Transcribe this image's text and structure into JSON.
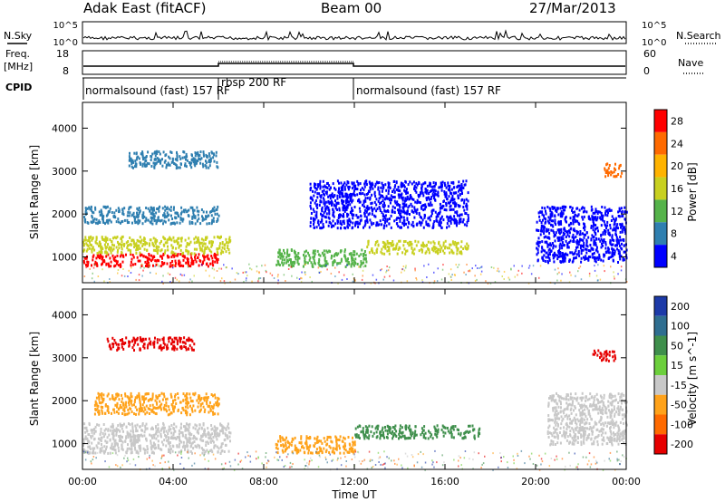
{
  "header": {
    "station": "Adak East (fitACF)",
    "beam": "Beam 00",
    "date": "27/Mar/2013"
  },
  "left_labels": {
    "nsky": "N.Sky",
    "freq": "Freq.",
    "freq_unit": "[MHz]",
    "cpid": "CPID"
  },
  "right_labels": {
    "nsearch": "N.Search",
    "nave": "Nave"
  },
  "ticks": {
    "nsky_left": [
      "10^5",
      "10^0"
    ],
    "nsearch_right": [
      "10^5",
      "10^0"
    ],
    "freq_left": [
      "18",
      "8"
    ],
    "nave_right": [
      "60",
      "0"
    ]
  },
  "cpid_programs": [
    {
      "label": "normalsound (fast) 157 RF",
      "start_h": 0,
      "end_h": 6
    },
    {
      "label": "rbsp 200 RF",
      "start_h": 6,
      "end_h": 12
    },
    {
      "label": "normalsound (fast) 157 RF",
      "start_h": 12,
      "end_h": 24
    }
  ],
  "colors": {
    "frame": "#000000",
    "background": "#ffffff"
  },
  "chart_data": [
    {
      "type": "heatmap",
      "quantity": "Power",
      "xlabel": "Time UT",
      "ylabel": "Slant Range [km]",
      "x_ticks": [
        "00:00",
        "04:00",
        "08:00",
        "12:00",
        "16:00",
        "20:00",
        "00:00"
      ],
      "x_range_hours": [
        0,
        24
      ],
      "y_ticks": [
        1000,
        2000,
        3000,
        4000
      ],
      "ylim": [
        400,
        4600
      ],
      "colorbar_label": "Power [dB]",
      "colorbar_ticks": [
        28,
        24,
        20,
        16,
        12,
        8,
        4
      ],
      "colorbar_colors": [
        "#ff0000",
        "#ff6a00",
        "#ffb300",
        "#c8d020",
        "#55b34a",
        "#2f7fb0",
        "#0000ff"
      ],
      "echo_regions": [
        {
          "t0": 0.0,
          "t1": 6.0,
          "r0": 800,
          "r1": 1100,
          "level": 28
        },
        {
          "t0": 0.0,
          "t1": 6.5,
          "r0": 1100,
          "r1": 1500,
          "level": 16
        },
        {
          "t0": 0.0,
          "t1": 6.0,
          "r0": 1800,
          "r1": 2200,
          "level": 8
        },
        {
          "t0": 2.0,
          "t1": 6.0,
          "r0": 3100,
          "r1": 3500,
          "level": 8
        },
        {
          "t0": 8.5,
          "t1": 12.5,
          "r0": 800,
          "r1": 1200,
          "level": 12
        },
        {
          "t0": 12.5,
          "t1": 17.0,
          "r0": 1100,
          "r1": 1400,
          "level": 16
        },
        {
          "t0": 10.0,
          "t1": 17.0,
          "r0": 1700,
          "r1": 2800,
          "level": 4
        },
        {
          "t0": 20.0,
          "t1": 24.0,
          "r0": 900,
          "r1": 2200,
          "level": 4
        },
        {
          "t0": 23.0,
          "t1": 23.8,
          "r0": 2900,
          "r1": 3200,
          "level": 24
        }
      ]
    },
    {
      "type": "heatmap",
      "quantity": "Velocity",
      "xlabel": "Time UT",
      "ylabel": "Slant Range [km]",
      "x_ticks": [
        "00:00",
        "04:00",
        "08:00",
        "12:00",
        "16:00",
        "20:00",
        "00:00"
      ],
      "x_range_hours": [
        0,
        24
      ],
      "y_ticks": [
        1000,
        2000,
        3000,
        4000
      ],
      "ylim": [
        400,
        4600
      ],
      "colorbar_label": "Velocity [m s^-1]",
      "colorbar_ticks": [
        200,
        100,
        50,
        15,
        -15,
        -50,
        -100,
        -200
      ],
      "colorbar_colors": [
        "#1d3aa8",
        "#2f6e90",
        "#3f8f4c",
        "#6ccf3c",
        "#c8c8c8",
        "#ffa21a",
        "#ff6a00",
        "#e60000"
      ],
      "echo_regions": [
        {
          "t0": 0.0,
          "t1": 6.5,
          "r0": 800,
          "r1": 1500,
          "level": 0
        },
        {
          "t0": 0.5,
          "t1": 6.0,
          "r0": 1700,
          "r1": 2200,
          "level": -50
        },
        {
          "t0": 1.0,
          "t1": 5.0,
          "r0": 3200,
          "r1": 3500,
          "level": -200
        },
        {
          "t0": 8.5,
          "t1": 12.0,
          "r0": 800,
          "r1": 1200,
          "level": -50
        },
        {
          "t0": 12.0,
          "t1": 17.5,
          "r0": 1150,
          "r1": 1450,
          "level": 50
        },
        {
          "t0": 20.5,
          "t1": 24.0,
          "r0": 1000,
          "r1": 2200,
          "level": 0
        },
        {
          "t0": 22.5,
          "t1": 23.5,
          "r0": 2950,
          "r1": 3200,
          "level": -200
        }
      ]
    }
  ]
}
